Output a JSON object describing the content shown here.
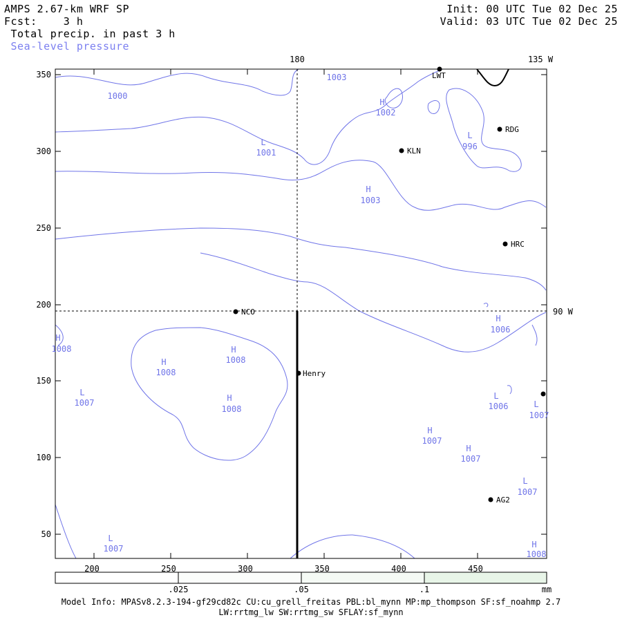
{
  "header": {
    "title": "AMPS 2.67-km WRF SP",
    "fcst_label": "Fcst:",
    "fcst_value": "3 h",
    "field1": "Total precip. in past 3 h",
    "field2": "Sea-level pressure",
    "init": "Init: 00 UTC Tue 02 Dec 25",
    "valid": "Valid: 03 UTC Tue 02 Dec 25"
  },
  "colors": {
    "contour": "#6f74e8",
    "frame": "#000000",
    "colorbar_low": "#ffffff",
    "colorbar_high": "#e8f5e8"
  },
  "map": {
    "x_ticks": [
      "200",
      "250",
      "300",
      "350",
      "400",
      "450"
    ],
    "y_ticks": [
      "50",
      "100",
      "150",
      "200",
      "250",
      "300",
      "350"
    ],
    "lon_labels": {
      "top_180": "180",
      "top_135w": "135 W",
      "right_90w": "90 W"
    },
    "stations": [
      {
        "name": "LWT"
      },
      {
        "name": "RDG"
      },
      {
        "name": "KLN"
      },
      {
        "name": "HRC"
      },
      {
        "name": "NCO"
      },
      {
        "name": "Henry"
      },
      {
        "name": "AG2"
      }
    ],
    "pressure_labels": [
      {
        "t": "1003",
        "letter": ""
      },
      {
        "t": "1000",
        "letter": ""
      },
      {
        "t": "1002",
        "letter": "H"
      },
      {
        "t": "1001",
        "letter": "L"
      },
      {
        "t": "996",
        "letter": "L"
      },
      {
        "t": "1003",
        "letter": "H"
      },
      {
        "t": "1006",
        "letter": "H"
      },
      {
        "t": "1008",
        "letter": "H"
      },
      {
        "t": "1008",
        "letter": "H"
      },
      {
        "t": "1008",
        "letter": "H"
      },
      {
        "t": "1008",
        "letter": "H"
      },
      {
        "t": "1007",
        "letter": "L"
      },
      {
        "t": "1006",
        "letter": "L"
      },
      {
        "t": "1007",
        "letter": "L"
      },
      {
        "t": "1007",
        "letter": "H"
      },
      {
        "t": "1007",
        "letter": "H"
      },
      {
        "t": "1007",
        "letter": "L"
      },
      {
        "t": "1007",
        "letter": "L"
      },
      {
        "t": "1008",
        "letter": "H"
      }
    ]
  },
  "colorbar": {
    "labels": [
      ".025",
      ".05",
      ".1"
    ],
    "unit": "mm"
  },
  "model_info": {
    "line1": "Model Info: MPASv8.2.3-194-gf29cd82c CU:cu_grell_freitas PBL:bl_mynn MP:mp_thompson SF:sf_noahmp 2.7",
    "line2": "LW:rrtmg_lw SW:rrtmg_sw SFLAY:sf_mynn"
  }
}
